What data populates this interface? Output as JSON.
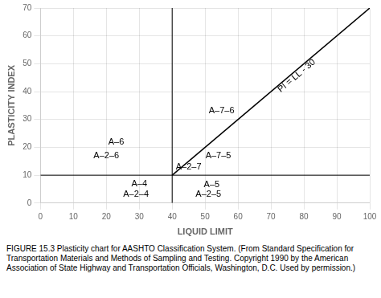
{
  "chart_data": {
    "type": "line",
    "xlabel": "LIQUID LIMIT",
    "ylabel": "PLASTICITY INDEX",
    "xlim": [
      0,
      100
    ],
    "ylim": [
      0,
      70
    ],
    "xticks": [
      0,
      10,
      20,
      30,
      40,
      50,
      60,
      70,
      80,
      90,
      100
    ],
    "yticks": [
      0,
      10,
      20,
      30,
      40,
      50,
      60,
      70
    ],
    "grid": true,
    "series": [
      {
        "x": [
          40,
          100
        ],
        "values": [
          10,
          70
        ],
        "color": "#000000",
        "annotation": {
          "text": "PI = LL - 30",
          "x": 79,
          "y": 44
        }
      }
    ],
    "vlines": [
      40
    ],
    "hlines": [
      10
    ],
    "line_color": "#000000",
    "annotations": [
      {
        "text": "A–7–6",
        "x": 55,
        "y": 33
      },
      {
        "text": "A–6",
        "x": 23,
        "y": 22
      },
      {
        "text": "A–2–6",
        "x": 20,
        "y": 17
      },
      {
        "text": "A–7–5",
        "x": 54,
        "y": 17
      },
      {
        "text": "A–2–7",
        "x": 45,
        "y": 13
      },
      {
        "text": "A–4",
        "x": 30,
        "y": 7
      },
      {
        "text": "A–5",
        "x": 52,
        "y": 6.5
      },
      {
        "text": "A–2–4",
        "x": 29,
        "y": 3
      },
      {
        "text": "A–2–5",
        "x": 51,
        "y": 3
      }
    ],
    "caption": "FIGURE 15.3  Plasticity chart for AASHTO Classification System. (From Standard Specification for Transportation Materials and Methods of Sampling and Testing. Copyright 1990 by the American Association of State Highway and Transportation Officials, Washington, D.C. Used by permission.)"
  }
}
